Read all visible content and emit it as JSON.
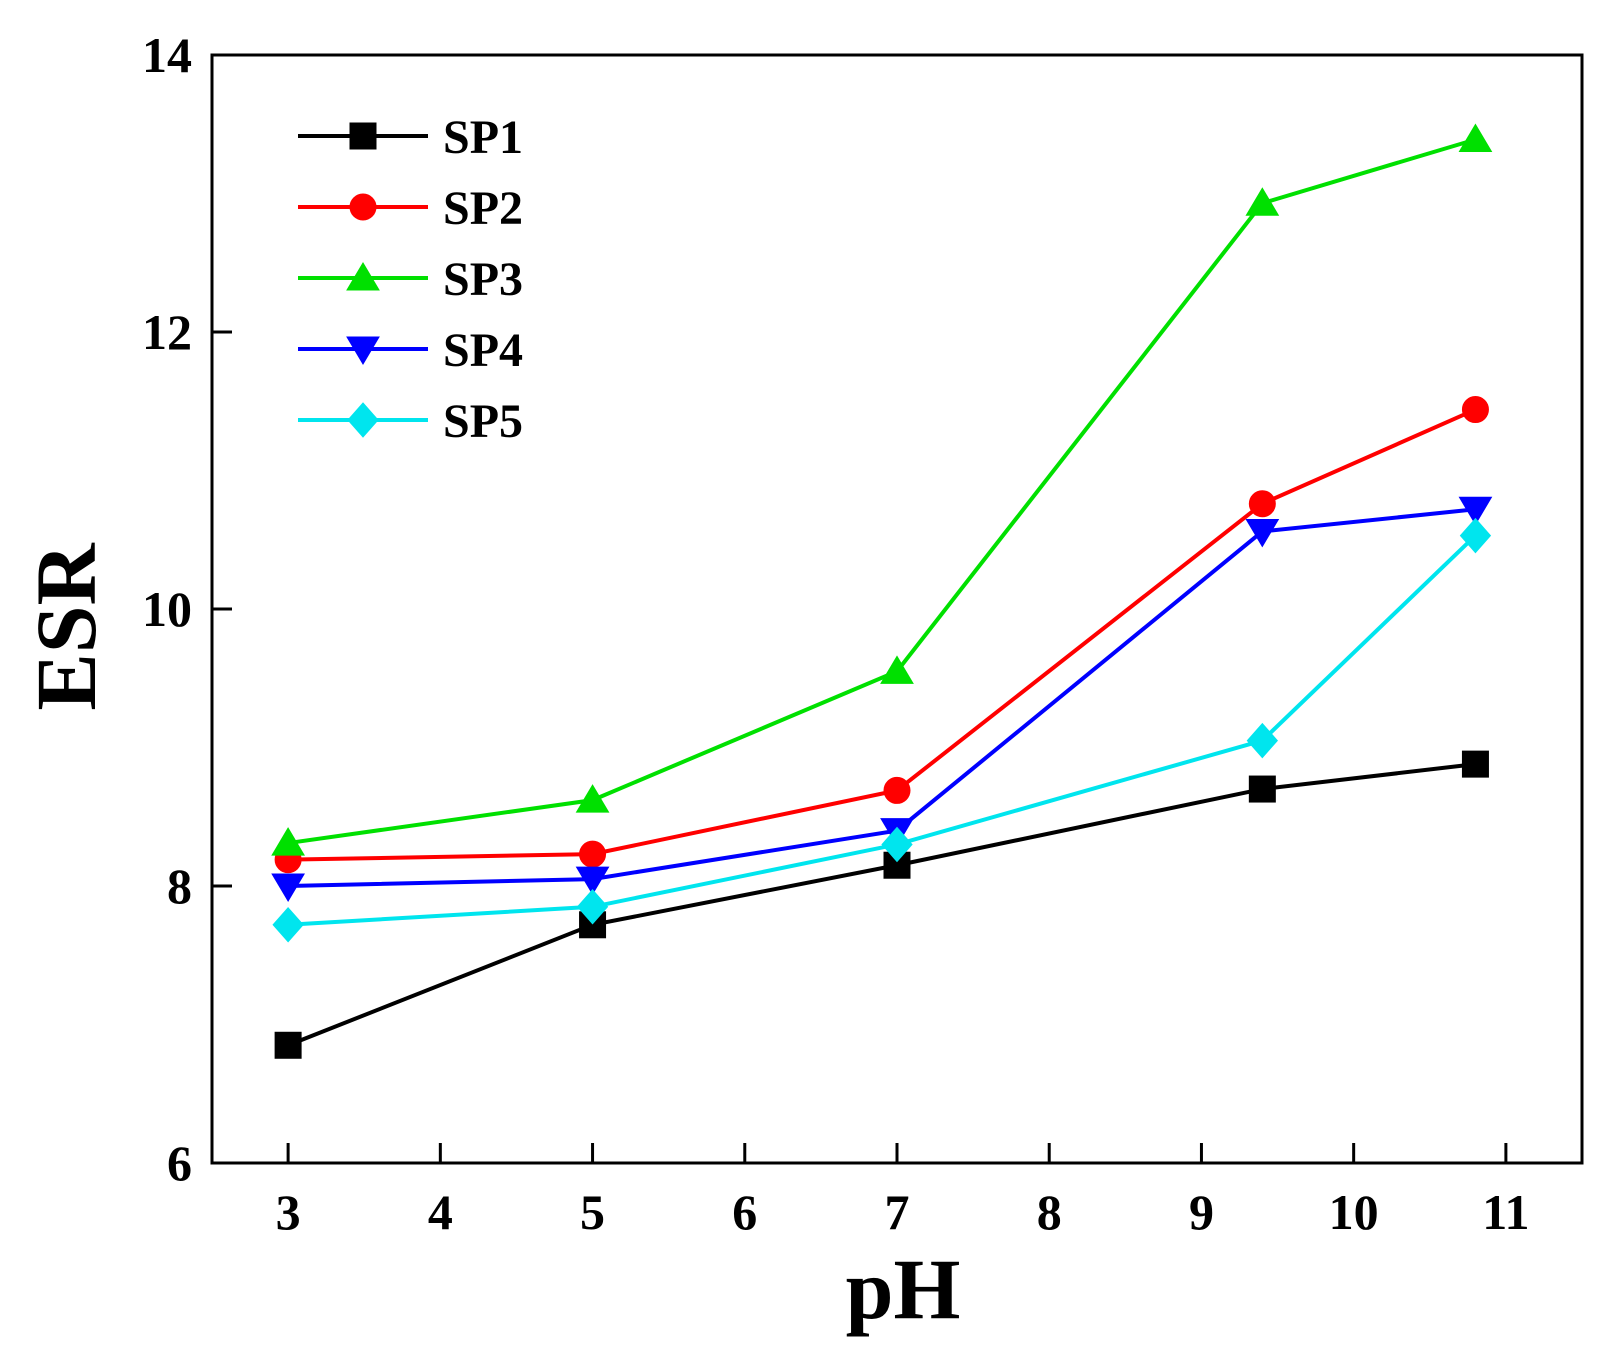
{
  "chart_data": {
    "type": "line",
    "title": "",
    "xlabel": "pH",
    "ylabel": "ESR",
    "xlim": [
      2.5,
      11.5
    ],
    "ylim": [
      6,
      14
    ],
    "xticks": [
      3,
      4,
      5,
      6,
      7,
      8,
      9,
      10,
      11
    ],
    "yticks": [
      6,
      8,
      10,
      12,
      14
    ],
    "legend_position": "top-left",
    "grid": false,
    "x": [
      3,
      5,
      7,
      9.4,
      10.8
    ],
    "series": [
      {
        "name": "SP1",
        "color": "#000000",
        "marker": "square",
        "values": [
          6.85,
          7.72,
          8.15,
          8.7,
          8.88
        ]
      },
      {
        "name": "SP2",
        "color": "#ff0000",
        "marker": "circle",
        "values": [
          8.19,
          8.23,
          8.69,
          10.76,
          11.44
        ]
      },
      {
        "name": "SP3",
        "color": "#00e000",
        "marker": "triangle-up",
        "values": [
          8.31,
          8.62,
          9.55,
          12.93,
          13.39
        ]
      },
      {
        "name": "SP4",
        "color": "#0000ff",
        "marker": "triangle-down",
        "values": [
          8.0,
          8.05,
          8.4,
          10.56,
          10.72
        ]
      },
      {
        "name": "SP5",
        "color": "#00e5ee",
        "marker": "diamond",
        "values": [
          7.72,
          7.85,
          8.3,
          9.05,
          10.53
        ]
      }
    ]
  }
}
